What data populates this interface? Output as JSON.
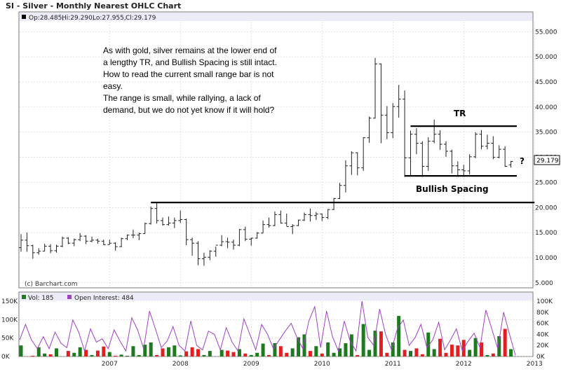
{
  "header": {
    "title": "SI - Silver - Monthly Nearest OHLC Chart"
  },
  "price_panel": {
    "ohlc_readout": [
      "Op:28.485,",
      "Hi:29.290,",
      "Lo:27.955,",
      "Cl:29.179"
    ],
    "price_tag": "29.179",
    "watermark": "(c) Barchart.com",
    "annotation_lines": [
      "As with gold, silver remains at the lower end of",
      "a lengthy TR, and Bullish Spacing is still intact.",
      "How to read the current small range bar is not",
      "easy.",
      "The range is small, while rallying, a lack of",
      "demand, but we do not yet know if it will hold?"
    ],
    "label_tr": "TR",
    "label_spacing": "Bullish Spacing",
    "label_question": "?"
  },
  "volume_panel": {
    "vol_legend": "Vol: 185",
    "oi_legend": "Open Interest: 484"
  },
  "colors": {
    "bar": "#222222",
    "up_volume": "#1e7a1e",
    "down_volume": "#e02020",
    "open_interest": "#a040c8",
    "legend_band": "#ececf8",
    "grid": "#d0d0d0"
  },
  "chart_data": [
    {
      "type": "ohlc",
      "title": "SI - Silver - Monthly Nearest OHLC Chart",
      "x_tick_labels": [
        "2007",
        "2008",
        "2009",
        "2010",
        "2011",
        "2012",
        "2013"
      ],
      "y_tick_labels": [
        "5.000",
        "10.000",
        "15.000",
        "20.000",
        "25.000",
        "30.000",
        "35.000",
        "40.000",
        "45.000",
        "50.000",
        "55.000"
      ],
      "ylim": [
        4,
        57
      ],
      "grid": true,
      "last": {
        "open": 28.485,
        "high": 29.29,
        "low": 27.955,
        "close": 29.179
      },
      "horizontal_lines": [
        {
          "label": "TR",
          "value": 36.2,
          "from": "2011-10",
          "to": "2013-04"
        },
        {
          "label": "Bullish Spacing",
          "value": 26.3,
          "from": "2011-09",
          "to": "2013-04"
        },
        {
          "label": "",
          "value": 21.0,
          "from": "2008-02",
          "to": "2013-07"
        }
      ],
      "bars": [
        {
          "m": "2006-04",
          "o": 12.0,
          "h": 14.7,
          "l": 11.2,
          "c": 13.5
        },
        {
          "m": "2006-05",
          "o": 13.5,
          "h": 15.0,
          "l": 11.2,
          "c": 12.4
        },
        {
          "m": "2006-06",
          "o": 12.4,
          "h": 12.6,
          "l": 9.8,
          "c": 11.0
        },
        {
          "m": "2006-07",
          "o": 11.0,
          "h": 11.9,
          "l": 10.6,
          "c": 11.3
        },
        {
          "m": "2006-08",
          "o": 11.3,
          "h": 12.8,
          "l": 11.3,
          "c": 12.3
        },
        {
          "m": "2006-09",
          "o": 12.3,
          "h": 12.7,
          "l": 10.9,
          "c": 11.4
        },
        {
          "m": "2006-10",
          "o": 11.4,
          "h": 12.6,
          "l": 11.0,
          "c": 12.3
        },
        {
          "m": "2006-11",
          "o": 12.3,
          "h": 14.2,
          "l": 12.1,
          "c": 13.9
        },
        {
          "m": "2006-12",
          "o": 13.9,
          "h": 14.1,
          "l": 12.7,
          "c": 12.9
        },
        {
          "m": "2007-01",
          "o": 12.9,
          "h": 13.8,
          "l": 12.3,
          "c": 13.6
        },
        {
          "m": "2007-02",
          "o": 13.6,
          "h": 14.9,
          "l": 13.3,
          "c": 14.3
        },
        {
          "m": "2007-03",
          "o": 14.3,
          "h": 14.5,
          "l": 12.7,
          "c": 13.3
        },
        {
          "m": "2007-04",
          "o": 13.3,
          "h": 14.2,
          "l": 13.1,
          "c": 13.5
        },
        {
          "m": "2007-05",
          "o": 13.5,
          "h": 13.8,
          "l": 12.8,
          "c": 13.3
        },
        {
          "m": "2007-06",
          "o": 13.3,
          "h": 13.6,
          "l": 12.5,
          "c": 12.6
        },
        {
          "m": "2007-07",
          "o": 12.6,
          "h": 13.6,
          "l": 12.6,
          "c": 12.9
        },
        {
          "m": "2007-08",
          "o": 12.9,
          "h": 13.1,
          "l": 11.4,
          "c": 12.2
        },
        {
          "m": "2007-09",
          "o": 12.2,
          "h": 14.0,
          "l": 12.1,
          "c": 13.8
        },
        {
          "m": "2007-10",
          "o": 13.8,
          "h": 14.6,
          "l": 13.5,
          "c": 14.5
        },
        {
          "m": "2007-11",
          "o": 14.5,
          "h": 15.6,
          "l": 13.9,
          "c": 14.5
        },
        {
          "m": "2007-12",
          "o": 14.5,
          "h": 15.0,
          "l": 13.5,
          "c": 14.8
        },
        {
          "m": "2008-01",
          "o": 14.8,
          "h": 17.0,
          "l": 14.8,
          "c": 16.8
        },
        {
          "m": "2008-02",
          "o": 16.8,
          "h": 20.2,
          "l": 16.6,
          "c": 19.8
        },
        {
          "m": "2008-03",
          "o": 19.8,
          "h": 21.1,
          "l": 16.8,
          "c": 17.4
        },
        {
          "m": "2008-04",
          "o": 17.4,
          "h": 18.0,
          "l": 16.4,
          "c": 16.6
        },
        {
          "m": "2008-05",
          "o": 16.6,
          "h": 18.2,
          "l": 16.4,
          "c": 16.9
        },
        {
          "m": "2008-06",
          "o": 16.9,
          "h": 18.0,
          "l": 15.9,
          "c": 17.4
        },
        {
          "m": "2008-07",
          "o": 17.4,
          "h": 19.4,
          "l": 16.9,
          "c": 17.6
        },
        {
          "m": "2008-08",
          "o": 17.6,
          "h": 17.8,
          "l": 12.5,
          "c": 13.6
        },
        {
          "m": "2008-09",
          "o": 13.6,
          "h": 14.0,
          "l": 10.4,
          "c": 12.9
        },
        {
          "m": "2008-10",
          "o": 12.9,
          "h": 13.3,
          "l": 8.5,
          "c": 9.8
        },
        {
          "m": "2008-11",
          "o": 9.8,
          "h": 11.0,
          "l": 8.4,
          "c": 10.1
        },
        {
          "m": "2008-12",
          "o": 10.1,
          "h": 11.5,
          "l": 9.5,
          "c": 11.3
        },
        {
          "m": "2009-01",
          "o": 11.3,
          "h": 12.2,
          "l": 10.2,
          "c": 12.5
        },
        {
          "m": "2009-02",
          "o": 12.5,
          "h": 14.5,
          "l": 12.3,
          "c": 13.2
        },
        {
          "m": "2009-03",
          "o": 13.2,
          "h": 14.0,
          "l": 11.9,
          "c": 13.1
        },
        {
          "m": "2009-04",
          "o": 13.1,
          "h": 13.6,
          "l": 11.6,
          "c": 12.5
        },
        {
          "m": "2009-05",
          "o": 12.5,
          "h": 15.7,
          "l": 12.3,
          "c": 15.6
        },
        {
          "m": "2009-06",
          "o": 15.6,
          "h": 16.2,
          "l": 13.3,
          "c": 13.7
        },
        {
          "m": "2009-07",
          "o": 13.7,
          "h": 14.0,
          "l": 12.4,
          "c": 13.9
        },
        {
          "m": "2009-08",
          "o": 13.9,
          "h": 15.1,
          "l": 13.8,
          "c": 14.9
        },
        {
          "m": "2009-09",
          "o": 14.9,
          "h": 17.4,
          "l": 14.9,
          "c": 16.6
        },
        {
          "m": "2009-10",
          "o": 16.6,
          "h": 18.0,
          "l": 16.0,
          "c": 16.4
        },
        {
          "m": "2009-11",
          "o": 16.4,
          "h": 19.2,
          "l": 16.3,
          "c": 18.6
        },
        {
          "m": "2009-12",
          "o": 18.6,
          "h": 19.4,
          "l": 16.8,
          "c": 16.9
        },
        {
          "m": "2010-01",
          "o": 16.9,
          "h": 18.8,
          "l": 16.3,
          "c": 16.2
        },
        {
          "m": "2010-02",
          "o": 16.2,
          "h": 16.7,
          "l": 14.7,
          "c": 16.4
        },
        {
          "m": "2010-03",
          "o": 16.4,
          "h": 17.6,
          "l": 16.3,
          "c": 17.5
        },
        {
          "m": "2010-04",
          "o": 17.5,
          "h": 19.0,
          "l": 17.3,
          "c": 18.6
        },
        {
          "m": "2010-05",
          "o": 18.6,
          "h": 19.8,
          "l": 17.2,
          "c": 18.4
        },
        {
          "m": "2010-06",
          "o": 18.4,
          "h": 19.1,
          "l": 17.5,
          "c": 18.7
        },
        {
          "m": "2010-07",
          "o": 18.7,
          "h": 18.8,
          "l": 17.3,
          "c": 18.0
        },
        {
          "m": "2010-08",
          "o": 18.0,
          "h": 19.7,
          "l": 17.7,
          "c": 19.6
        },
        {
          "m": "2010-09",
          "o": 19.6,
          "h": 21.9,
          "l": 19.5,
          "c": 21.8
        },
        {
          "m": "2010-10",
          "o": 21.8,
          "h": 24.9,
          "l": 21.7,
          "c": 24.4
        },
        {
          "m": "2010-11",
          "o": 24.4,
          "h": 29.4,
          "l": 23.0,
          "c": 28.3
        },
        {
          "m": "2010-12",
          "o": 28.3,
          "h": 31.2,
          "l": 26.5,
          "c": 30.9
        },
        {
          "m": "2011-01",
          "o": 30.9,
          "h": 31.0,
          "l": 26.4,
          "c": 27.9
        },
        {
          "m": "2011-02",
          "o": 27.9,
          "h": 34.0,
          "l": 27.3,
          "c": 33.9
        },
        {
          "m": "2011-03",
          "o": 33.9,
          "h": 38.1,
          "l": 32.9,
          "c": 37.8
        },
        {
          "m": "2011-04",
          "o": 37.8,
          "h": 49.8,
          "l": 37.7,
          "c": 48.6
        },
        {
          "m": "2011-05",
          "o": 48.6,
          "h": 48.7,
          "l": 32.8,
          "c": 38.4
        },
        {
          "m": "2011-06",
          "o": 38.4,
          "h": 40.2,
          "l": 33.6,
          "c": 34.9
        },
        {
          "m": "2011-07",
          "o": 34.9,
          "h": 40.8,
          "l": 33.8,
          "c": 40.1
        },
        {
          "m": "2011-08",
          "o": 40.1,
          "h": 44.4,
          "l": 37.9,
          "c": 41.6
        },
        {
          "m": "2011-09",
          "o": 41.6,
          "h": 43.3,
          "l": 26.1,
          "c": 29.9
        },
        {
          "m": "2011-10",
          "o": 29.9,
          "h": 35.3,
          "l": 26.2,
          "c": 34.6
        },
        {
          "m": "2011-11",
          "o": 34.6,
          "h": 35.8,
          "l": 30.6,
          "c": 32.8
        },
        {
          "m": "2011-12",
          "o": 32.8,
          "h": 33.2,
          "l": 26.1,
          "c": 28.2
        },
        {
          "m": "2012-01",
          "o": 28.2,
          "h": 34.0,
          "l": 27.3,
          "c": 33.2
        },
        {
          "m": "2012-02",
          "o": 33.2,
          "h": 37.5,
          "l": 32.8,
          "c": 34.6
        },
        {
          "m": "2012-03",
          "o": 34.6,
          "h": 35.4,
          "l": 31.5,
          "c": 32.6
        },
        {
          "m": "2012-04",
          "o": 32.6,
          "h": 33.2,
          "l": 30.1,
          "c": 31.2
        },
        {
          "m": "2012-05",
          "o": 31.2,
          "h": 31.5,
          "l": 26.8,
          "c": 28.3
        },
        {
          "m": "2012-06",
          "o": 28.3,
          "h": 29.2,
          "l": 26.1,
          "c": 27.5
        },
        {
          "m": "2012-07",
          "o": 27.5,
          "h": 28.5,
          "l": 26.1,
          "c": 27.3
        },
        {
          "m": "2012-08",
          "o": 27.3,
          "h": 30.6,
          "l": 26.6,
          "c": 30.1
        },
        {
          "m": "2012-09",
          "o": 30.1,
          "h": 35.0,
          "l": 29.8,
          "c": 34.6
        },
        {
          "m": "2012-10",
          "o": 34.6,
          "h": 35.4,
          "l": 31.6,
          "c": 32.2
        },
        {
          "m": "2012-11",
          "o": 32.2,
          "h": 34.5,
          "l": 31.6,
          "c": 32.8
        },
        {
          "m": "2012-12",
          "o": 32.8,
          "h": 34.2,
          "l": 29.6,
          "c": 30.0
        },
        {
          "m": "2013-01",
          "o": 30.0,
          "h": 32.4,
          "l": 29.8,
          "c": 31.6
        },
        {
          "m": "2013-02",
          "o": 31.6,
          "h": 32.2,
          "l": 28.1,
          "c": 28.2
        },
        {
          "m": "2013-03",
          "o": 28.485,
          "h": 29.29,
          "l": 27.955,
          "c": 29.179
        }
      ]
    },
    {
      "type": "bar",
      "title": "",
      "series": [
        {
          "name": "Vol",
          "current": 185
        },
        {
          "name": "Open Interest",
          "current": 484
        }
      ],
      "left_tick_labels": [
        "0K",
        "50K",
        "100K",
        "150K"
      ],
      "right_tick_labels": [
        "0K",
        "20K",
        "40K",
        "60K",
        "80K",
        "100K"
      ],
      "left_ylim": [
        0,
        150000
      ],
      "right_ylim": [
        0,
        100000
      ],
      "volume": [
        30,
        0,
        2,
        25,
        8,
        6,
        22,
        0,
        15,
        10,
        25,
        18,
        4,
        16,
        27,
        12,
        2,
        5,
        2,
        28,
        4,
        32,
        38,
        4,
        22,
        25,
        30,
        3,
        14,
        25,
        20,
        4,
        15,
        0,
        18,
        16,
        12,
        20,
        8,
        4,
        10,
        35,
        4,
        36,
        28,
        10,
        22,
        52,
        60,
        15,
        28,
        8,
        38,
        10,
        22,
        36,
        60,
        4,
        88,
        18,
        70,
        68,
        10,
        38,
        110,
        18,
        15,
        22,
        6,
        65,
        20,
        48,
        10,
        32,
        30,
        45,
        18,
        50,
        38,
        4,
        8,
        55,
        75,
        20,
        42
      ],
      "open_interest": [
        30,
        58,
        30,
        14,
        36,
        14,
        44,
        24,
        16,
        66,
        44,
        10,
        50,
        26,
        32,
        14,
        48,
        28,
        10,
        70,
        48,
        14,
        82,
        50,
        16,
        28,
        54,
        20,
        10,
        64,
        20,
        12,
        46,
        40,
        12,
        52,
        26,
        10,
        68,
        40,
        12,
        58,
        40,
        14,
        30,
        46,
        60,
        34,
        14,
        64,
        90,
        16,
        82,
        36,
        10,
        64,
        28,
        10,
        100,
        34,
        20,
        86,
        40,
        12,
        50,
        66,
        20,
        34,
        58,
        16,
        30,
        62,
        12,
        30,
        50,
        10,
        28,
        42,
        16,
        84,
        50,
        14,
        80,
        40,
        2
      ]
    }
  ]
}
